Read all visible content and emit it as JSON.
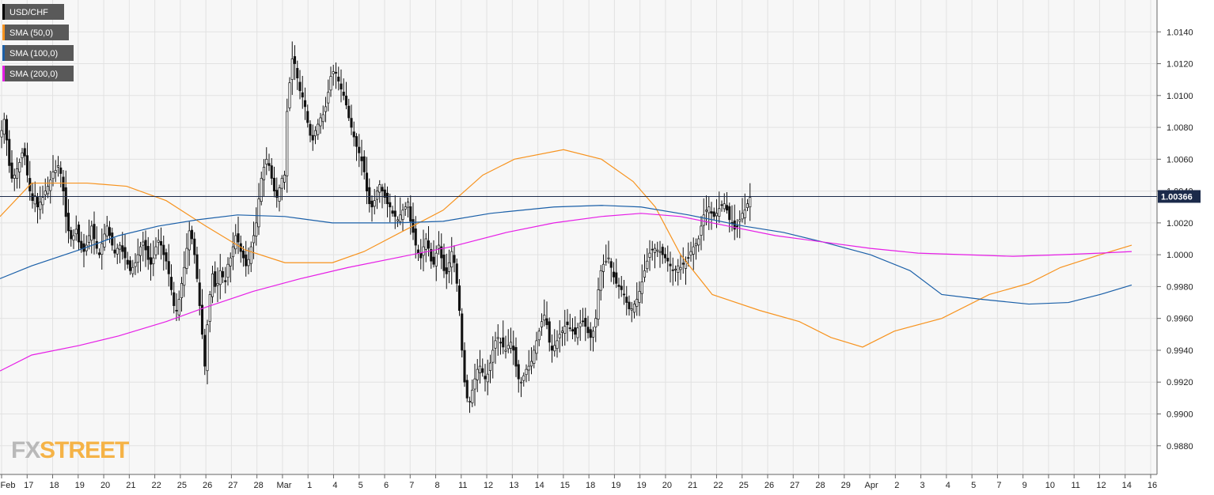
{
  "chart_data": {
    "type": "candlestick",
    "symbol": "USD/CHF",
    "legend": [
      {
        "label": "USD/CHF",
        "color": "#000000"
      },
      {
        "label": "SMA (50,0)",
        "color": "#f7931e"
      },
      {
        "label": "SMA (100,0)",
        "color": "#1a5fa8"
      },
      {
        "label": "SMA (200,0)",
        "color": "#e61ee6"
      }
    ],
    "last_price": "1.00366",
    "last_price_value": 1.00366,
    "ylim": [
      0.9862,
      1.016
    ],
    "y_ticks": [
      "1.0140",
      "1.0120",
      "1.0100",
      "1.0080",
      "1.0060",
      "1.0040",
      "1.0020",
      "1.0000",
      "0.9980",
      "0.9960",
      "0.9940",
      "0.9920",
      "0.9900",
      "0.9880"
    ],
    "x_ticks": [
      "Feb",
      "17",
      "18",
      "19",
      "20",
      "21",
      "22",
      "25",
      "26",
      "27",
      "28",
      "Mar",
      "1",
      "4",
      "5",
      "6",
      "7",
      "8",
      "11",
      "12",
      "13",
      "14",
      "15",
      "18",
      "19",
      "19",
      "20",
      "21",
      "22",
      "25",
      "26",
      "27",
      "28",
      "29",
      "Apr",
      "2",
      "3",
      "4",
      "5",
      "7",
      "9",
      "10",
      "11",
      "12",
      "14",
      "16"
    ],
    "x_tick_index": [
      0,
      9,
      18,
      27,
      36,
      45,
      54,
      63,
      72,
      81,
      90,
      99,
      108,
      117,
      126,
      135,
      144,
      153,
      162,
      171,
      180,
      189,
      198,
      207,
      216,
      225,
      234,
      243,
      252,
      261,
      270,
      279,
      288,
      297,
      306,
      315,
      324,
      333,
      342,
      351,
      360,
      369,
      378,
      387,
      396,
      405
    ],
    "grid": true,
    "closes": [
      1.0078,
      1.0085,
      1.0072,
      1.0056,
      1.0048,
      1.005,
      1.0054,
      1.0058,
      1.0064,
      1.0062,
      1.005,
      1.004,
      1.0034,
      1.0037,
      1.003,
      1.0033,
      1.0036,
      1.004,
      1.0043,
      1.0047,
      1.0052,
      1.0053,
      1.0056,
      1.0051,
      1.004,
      1.0024,
      1.0015,
      1.001,
      1.0012,
      1.0016,
      1.0008,
      1.0004,
      1.0002,
      1.0006,
      1.0012,
      1.0018,
      1.001,
      1.0004,
      1.0,
      1.0007,
      1.0013,
      1.0018,
      1.0012,
      1.0006,
      1.0001,
      1.0004,
      1.0006,
      1.0002,
      0.9998,
      0.9994,
      0.999,
      0.9992,
      0.9995,
      1.0,
      1.0005,
      1.0008,
      1.0003,
      0.9997,
      0.9994,
      0.9998,
      1.0005,
      1.0009,
      1.0006,
      1.0,
      0.9996,
      0.9988,
      0.9978,
      0.9968,
      0.9965,
      0.9972,
      0.9982,
      0.9992,
      1.0004,
      1.0015,
      1.001,
      1.0,
      0.9985,
      0.9968,
      0.995,
      0.993,
      0.9956,
      0.9975,
      0.9988,
      0.998,
      0.9982,
      0.999,
      0.9986,
      0.9983,
      0.9994,
      0.9998,
      1.0005,
      1.0012,
      1.0008,
      1.0002,
      0.9998,
      0.9993,
      0.9997,
      1.0005,
      1.0012,
      1.002,
      1.0035,
      1.0048,
      1.0055,
      1.006,
      1.0056,
      1.0048,
      1.004,
      1.0036,
      1.0042,
      1.0048,
      1.005,
      1.009,
      1.0108,
      1.0123,
      1.012,
      1.0111,
      1.0103,
      1.0099,
      1.0093,
      1.0083,
      1.0075,
      1.0072,
      1.0078,
      1.0082,
      1.0086,
      1.0088,
      1.0093,
      1.0102,
      1.0112,
      1.0115,
      1.0114,
      1.0109,
      1.0104,
      1.01,
      1.0094,
      1.0086,
      1.008,
      1.0074,
      1.0068,
      1.0064,
      1.0059,
      1.0052,
      1.004,
      1.0032,
      1.003,
      1.0034,
      1.004,
      1.0044,
      1.004,
      1.0036,
      1.0032,
      1.003,
      1.0026,
      1.0024,
      1.0022,
      1.0025,
      1.0028,
      1.003,
      1.0033,
      1.0021,
      1.0014,
      1.0006,
      1.0001,
      0.9998,
      1.0005,
      1.001,
      1.0004,
      0.9996,
      0.9994,
      1.0001,
      1.0006,
      0.9998,
      0.999,
      0.9988,
      0.9995,
      1.0002,
      0.9995,
      0.9982,
      0.9965,
      0.994,
      0.992,
      0.991,
      0.9908,
      0.9915,
      0.9922,
      0.9928,
      0.993,
      0.9926,
      0.9922,
      0.9925,
      0.9932,
      0.994,
      0.9946,
      0.9948,
      0.9945,
      0.9942,
      0.994,
      0.9943,
      0.9945,
      0.994,
      0.993,
      0.9922,
      0.992,
      0.9924,
      0.9928,
      0.993,
      0.9933,
      0.994,
      0.9946,
      0.9952,
      0.9958,
      0.9962,
      0.9956,
      0.9945,
      0.994,
      0.9943,
      0.9946,
      0.995,
      0.9952,
      0.9955,
      0.9956,
      0.9954,
      0.9952,
      0.995,
      0.9954,
      0.9957,
      0.9958,
      0.9955,
      0.9951,
      0.9948,
      0.9952,
      0.996,
      0.9978,
      0.999,
      0.9994,
      0.9996,
      0.9998,
      0.9992,
      0.9986,
      0.9982,
      0.998,
      0.9978,
      0.9975,
      0.997,
      0.9966,
      0.9966,
      0.9969,
      0.9972,
      0.9977,
      0.9983,
      0.999,
      0.9996,
      1.0001,
      1.0003,
      1.0004,
      1.0003,
      1.0002,
      1.0,
      0.9998,
      0.9996,
      0.9993,
      0.999,
      0.9991,
      0.9993,
      0.9992,
      0.9994,
      0.9996,
      0.9998,
      1.0002,
      1.0005,
      1.0007,
      1.001,
      1.0018,
      1.0025,
      1.0028,
      1.003,
      1.0026,
      1.0024,
      1.0026,
      1.0029,
      1.0031,
      1.0032,
      1.0028,
      1.0022,
      1.002,
      1.0016,
      1.0018,
      1.0022,
      1.0026,
      1.0028,
      1.0032,
      1.0036
    ],
    "sma50": [
      [
        0,
        1.0024
      ],
      [
        40,
        1.0045
      ],
      [
        110,
        1.0045
      ],
      [
        160,
        1.0043
      ],
      [
        210,
        1.0034
      ],
      [
        260,
        1.0018
      ],
      [
        310,
        1.0003
      ],
      [
        360,
        0.9995
      ],
      [
        420,
        0.9995
      ],
      [
        460,
        1.0002
      ],
      [
        510,
        1.0015
      ],
      [
        560,
        1.0028
      ],
      [
        610,
        1.005
      ],
      [
        650,
        1.006
      ],
      [
        712,
        1.0066
      ],
      [
        760,
        1.006
      ],
      [
        800,
        1.0046
      ],
      [
        828,
        1.003
      ],
      [
        860,
        1.0
      ],
      [
        900,
        0.9975
      ],
      [
        960,
        0.9965
      ],
      [
        1010,
        0.9958
      ],
      [
        1050,
        0.9948
      ],
      [
        1090,
        0.9942
      ],
      [
        1130,
        0.9952
      ],
      [
        1190,
        0.996
      ],
      [
        1250,
        0.9975
      ],
      [
        1300,
        0.9982
      ],
      [
        1340,
        0.9992
      ],
      [
        1390,
        1.0
      ],
      [
        1430,
        1.0006
      ]
    ],
    "sma100": [
      [
        0,
        0.9985
      ],
      [
        40,
        0.9993
      ],
      [
        100,
        1.0003
      ],
      [
        150,
        1.0012
      ],
      [
        200,
        1.0018
      ],
      [
        250,
        1.0022
      ],
      [
        300,
        1.0025
      ],
      [
        360,
        1.0024
      ],
      [
        420,
        1.002
      ],
      [
        500,
        1.002
      ],
      [
        560,
        1.0021
      ],
      [
        620,
        1.0026
      ],
      [
        700,
        1.003
      ],
      [
        760,
        1.0031
      ],
      [
        810,
        1.003
      ],
      [
        870,
        1.0025
      ],
      [
        940,
        1.0018
      ],
      [
        990,
        1.0014
      ],
      [
        1040,
        1.0008
      ],
      [
        1100,
        1.0
      ],
      [
        1150,
        0.999
      ],
      [
        1190,
        0.9975
      ],
      [
        1240,
        0.9972
      ],
      [
        1300,
        0.9969
      ],
      [
        1350,
        0.997
      ],
      [
        1390,
        0.9975
      ],
      [
        1430,
        0.9981
      ]
    ],
    "sma200": [
      [
        0,
        0.9927
      ],
      [
        40,
        0.9937
      ],
      [
        100,
        0.9943
      ],
      [
        150,
        0.9949
      ],
      [
        210,
        0.9958
      ],
      [
        260,
        0.9967
      ],
      [
        320,
        0.9977
      ],
      [
        380,
        0.9985
      ],
      [
        440,
        0.9992
      ],
      [
        500,
        0.9998
      ],
      [
        570,
        1.0005
      ],
      [
        640,
        1.0014
      ],
      [
        700,
        1.002
      ],
      [
        760,
        1.0024
      ],
      [
        810,
        1.0026
      ],
      [
        860,
        1.0024
      ],
      [
        920,
        1.0018
      ],
      [
        980,
        1.0012
      ],
      [
        1040,
        1.0008
      ],
      [
        1100,
        1.0004
      ],
      [
        1160,
        1.0001
      ],
      [
        1220,
        1.0
      ],
      [
        1280,
        0.9999
      ],
      [
        1340,
        1.0
      ],
      [
        1390,
        1.0001
      ],
      [
        1430,
        1.0002
      ]
    ]
  }
}
